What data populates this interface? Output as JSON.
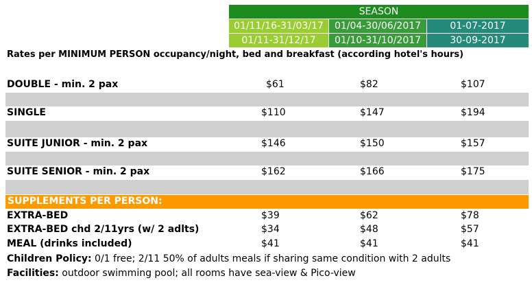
{
  "season": {
    "header": "SEASON",
    "periods": [
      {
        "line1": "01/11/16-31/03/17",
        "line2": "01/11-31/12/17"
      },
      {
        "line1": "01/04-30/06/2017",
        "line2": "01/10-31/10/2017"
      },
      {
        "line1": "01-07-2017",
        "line2": "30-09-2017"
      }
    ]
  },
  "subtitle": "Rates per MINIMUM PERSON occupancy/night, bed and breakfast (according hotel's hours)",
  "rooms": [
    {
      "label": "DOUBLE - min. 2 pax",
      "prices": [
        "$61",
        "$82",
        "$107"
      ]
    },
    {
      "label": "SINGLE",
      "prices": [
        "$110",
        "$147",
        "$194"
      ]
    },
    {
      "label": "SUITE JUNIOR - min. 2 pax",
      "prices": [
        "$146",
        "$150",
        "$157"
      ]
    },
    {
      "label": "SUITE SENIOR - min. 2 pax",
      "prices": [
        "$162",
        "$166",
        "$175"
      ]
    }
  ],
  "supplements": {
    "header": "SUPPLEMENTS PER PERSON:",
    "items": [
      {
        "label": "EXTRA-BED",
        "prices": [
          "$39",
          "$62",
          "$78"
        ]
      },
      {
        "label": "EXTRA-BED chd 2/11yrs (w/ 2 adlts)",
        "prices": [
          "$34",
          "$48",
          "$57"
        ]
      },
      {
        "label": "MEAL (drinks included)",
        "prices": [
          "$41",
          "$41",
          "$41"
        ]
      }
    ]
  },
  "notes": {
    "children_label": "Children Policy:",
    "children_text": " 0/1 free; 2/11 50% of adults meals if sharing same condition with 2 adults",
    "facilities_label": "Facilities:",
    "facilities_text": " outdoor swimming pool; all rooms have sea-view & Pico-view"
  },
  "colors": {
    "season_header": "#1e8b1e",
    "period1": "#9acd32",
    "period2": "#3a9b3a",
    "period3": "#268a7a",
    "separator": "#cfcfcf",
    "supplements_bar": "#ff9900"
  }
}
